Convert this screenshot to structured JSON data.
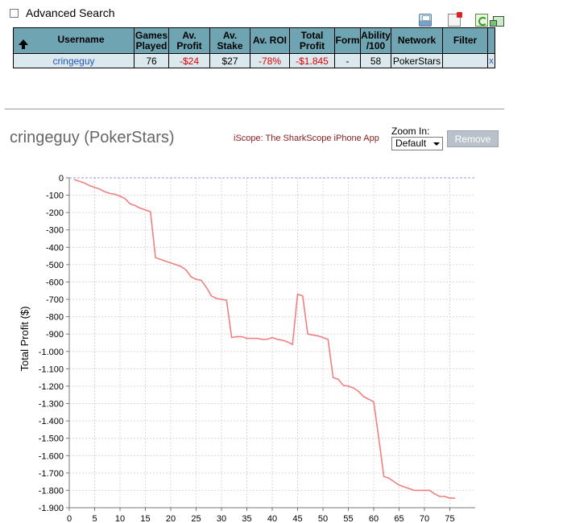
{
  "advanced_search": {
    "label": "Advanced Search",
    "checked": false
  },
  "toolbar_icons": [
    "save-icon",
    "close-window-icon",
    "refresh-icon",
    "popout-icon"
  ],
  "table": {
    "headers": [
      "Username",
      "Games Played",
      "Av. Profit",
      "Av. Stake",
      "Av. ROI",
      "Total Profit",
      "Form",
      "Ability /100",
      "Network",
      "Filter"
    ],
    "row": {
      "username": "cringeguy",
      "games": "76",
      "av_profit": "-$24",
      "av_stake": "$27",
      "av_roi": "-78%",
      "total_profit": "-$1.845",
      "form": "-",
      "ability": "58",
      "network": "PokerStars",
      "filter": "",
      "remove_link": "x"
    }
  },
  "player_title": "cringeguy (PokerStars)",
  "promo_link": "iScope: The SharkScope iPhone App",
  "zoom": {
    "label": "Zoom In:",
    "selected": "Default"
  },
  "remove_button": "Remove",
  "colors": {
    "header_bg": "#6fa5b2",
    "row_bg": "#dbe9ee",
    "negative": "#e00000",
    "line": "#f08080"
  },
  "chart_data": {
    "type": "line",
    "ylabel": "Total Profit ($)",
    "xlabel": "",
    "xlim": [
      0,
      80
    ],
    "ylim": [
      -1900,
      0
    ],
    "xticks": [
      0,
      5,
      10,
      15,
      20,
      25,
      30,
      35,
      40,
      45,
      50,
      55,
      60,
      65,
      70,
      75
    ],
    "xtick_labels": [
      "0",
      "5",
      "10",
      "15",
      "20",
      "25",
      "30",
      "35",
      "40",
      "45",
      "50",
      "55",
      "60",
      "65",
      "70",
      "75"
    ],
    "yticks": [
      0,
      -100,
      -200,
      -300,
      -400,
      -500,
      -600,
      -700,
      -800,
      -900,
      -1000,
      -1100,
      -1200,
      -1300,
      -1400,
      -1500,
      -1600,
      -1700,
      -1800,
      -1900
    ],
    "ytick_labels": [
      "0",
      "-100",
      "-200",
      "-300",
      "-400",
      "-500",
      "-600",
      "-700",
      "-800",
      "-900",
      "-1.000",
      "-1.100",
      "-1.200",
      "-1.300",
      "-1.400",
      "-1.500",
      "-1.600",
      "-1.700",
      "-1.800",
      "-1.900"
    ],
    "grid": true,
    "series": [
      {
        "x": [
          1,
          2,
          3,
          4,
          5,
          6,
          7,
          8,
          9,
          10,
          11,
          12,
          13,
          14,
          15,
          16,
          17,
          18,
          19,
          20,
          21,
          22,
          23,
          24,
          25,
          26,
          27,
          28,
          29,
          30,
          31,
          32,
          33,
          34,
          35,
          36,
          37,
          38,
          39,
          40,
          41,
          42,
          43,
          44,
          45,
          46,
          47,
          48,
          49,
          50,
          51,
          52,
          53,
          54,
          55,
          56,
          57,
          58,
          59,
          60,
          61,
          62,
          63,
          64,
          65,
          66,
          67,
          68,
          69,
          70,
          71,
          72,
          73,
          74,
          75,
          76
        ],
        "y": [
          -10,
          -20,
          -30,
          -45,
          -55,
          -65,
          -80,
          -90,
          -95,
          -105,
          -120,
          -150,
          -160,
          -175,
          -185,
          -195,
          -460,
          -470,
          -480,
          -490,
          -500,
          -510,
          -530,
          -570,
          -585,
          -590,
          -630,
          -680,
          -695,
          -700,
          -705,
          -920,
          -915,
          -915,
          -925,
          -925,
          -925,
          -930,
          -930,
          -920,
          -930,
          -935,
          -945,
          -960,
          -670,
          -680,
          -900,
          -905,
          -910,
          -920,
          -930,
          -1150,
          -1160,
          -1195,
          -1200,
          -1210,
          -1230,
          -1260,
          -1275,
          -1290,
          -1500,
          -1720,
          -1730,
          -1750,
          -1770,
          -1780,
          -1790,
          -1800,
          -1800,
          -1800,
          -1800,
          -1820,
          -1835,
          -1835,
          -1845,
          -1845
        ]
      }
    ]
  }
}
